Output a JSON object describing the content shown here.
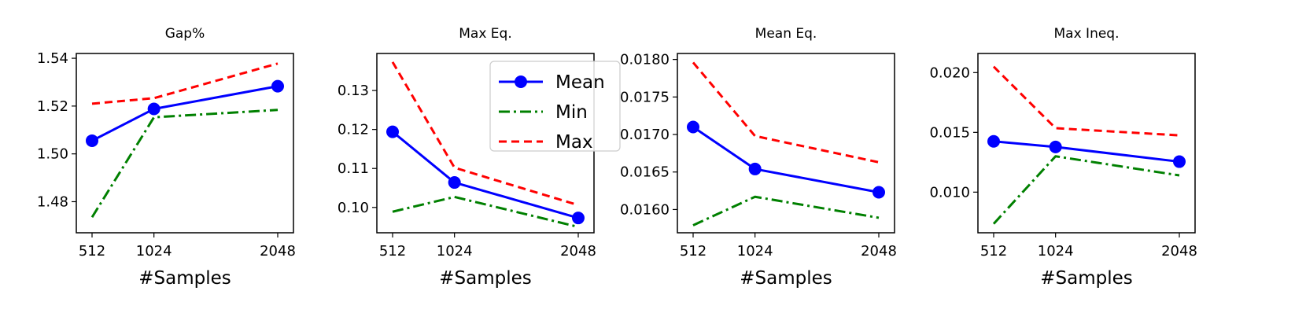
{
  "colors": {
    "Mean": "#0000ff",
    "Min": "#008000",
    "Max": "#ff0000"
  },
  "legend": {
    "entries": [
      "Mean",
      "Min",
      "Max"
    ],
    "placement": "upper right of second panel"
  },
  "chart_data": [
    {
      "type": "line",
      "title": "Gap%",
      "xlabel": "#Samples",
      "x": [
        512,
        1024,
        2048
      ],
      "xticks": [
        "512",
        "1024",
        "2048"
      ],
      "ylim": [
        1.467,
        1.542
      ],
      "yticks": [
        "1.48",
        "1.50",
        "1.52",
        "1.54"
      ],
      "ytick_values": [
        1.48,
        1.5,
        1.52,
        1.54
      ],
      "series": [
        {
          "name": "Mean",
          "values": [
            1.5055,
            1.5188,
            1.5283
          ]
        },
        {
          "name": "Min",
          "values": [
            1.4735,
            1.5153,
            1.5184
          ]
        },
        {
          "name": "Max",
          "values": [
            1.521,
            1.5233,
            1.5378
          ]
        }
      ]
    },
    {
      "type": "line",
      "title": "Max Eq.",
      "xlabel": "#Samples",
      "x": [
        512,
        1024,
        2048
      ],
      "xticks": [
        "512",
        "1024",
        "2048"
      ],
      "ylim": [
        0.0935,
        0.1395
      ],
      "yticks": [
        "0.10",
        "0.11",
        "0.12",
        "0.13"
      ],
      "ytick_values": [
        0.1,
        0.11,
        0.12,
        0.13
      ],
      "series": [
        {
          "name": "Mean",
          "values": [
            0.1194,
            0.1064,
            0.0973
          ]
        },
        {
          "name": "Min",
          "values": [
            0.0989,
            0.1027,
            0.095
          ]
        },
        {
          "name": "Max",
          "values": [
            0.1373,
            0.1102,
            0.1006
          ]
        }
      ]
    },
    {
      "type": "line",
      "title": "Mean Eq.",
      "xlabel": "#Samples",
      "x": [
        512,
        1024,
        2048
      ],
      "xticks": [
        "512",
        "1024",
        "2048"
      ],
      "ylim": [
        0.01569,
        0.01808
      ],
      "yticks": [
        "0.0160",
        "0.0165",
        "0.0170",
        "0.0175",
        "0.0180"
      ],
      "ytick_values": [
        0.016,
        0.0165,
        0.017,
        0.0175,
        0.018
      ],
      "series": [
        {
          "name": "Mean",
          "values": [
            0.0171,
            0.01654,
            0.01623
          ]
        },
        {
          "name": "Min",
          "values": [
            0.01579,
            0.01617,
            0.01589
          ]
        },
        {
          "name": "Max",
          "values": [
            0.01796,
            0.01698,
            0.01663
          ]
        }
      ]
    },
    {
      "type": "line",
      "title": "Max Ineq.",
      "xlabel": "#Samples",
      "x": [
        512,
        1024,
        2048
      ],
      "xticks": [
        "512",
        "1024",
        "2048"
      ],
      "ylim": [
        0.0066,
        0.0216
      ],
      "yticks": [
        "0.010",
        "0.015",
        "0.020"
      ],
      "ytick_values": [
        0.01,
        0.015,
        0.02
      ],
      "series": [
        {
          "name": "Mean",
          "values": [
            0.01425,
            0.01378,
            0.01255
          ]
        },
        {
          "name": "Min",
          "values": [
            0.00735,
            0.013,
            0.0114
          ]
        },
        {
          "name": "Max",
          "values": [
            0.0205,
            0.01535,
            0.01475
          ]
        }
      ]
    }
  ]
}
